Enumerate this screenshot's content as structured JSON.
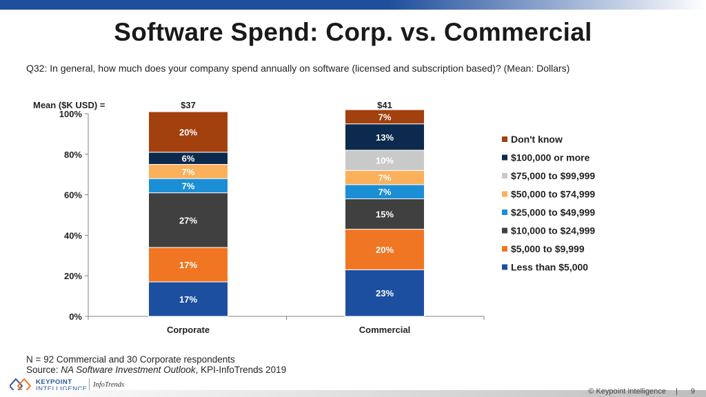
{
  "slide": {
    "title": "Software Spend: Corp. vs. Commercial",
    "question": "Q32:  In general, how much does your company spend annually on software (licensed and subscription based)? (Mean: Dollars)",
    "note_line1": "N = 92 Commercial and 30 Corporate respondents",
    "source_prefix": "Source: ",
    "source_italic": "NA Software Investment Outlook",
    "source_suffix": ", KPI-InfoTrends 2019",
    "logo_line1": "KEYPOINT",
    "logo_line2": "INTELLIGENCE",
    "logo_brand2": "InfoTrends",
    "copyright": "© Keypoint Intelligence",
    "page_separator": "|",
    "page_number": "9",
    "band_color": "#1f4e9c"
  },
  "chart_data": {
    "type": "bar",
    "stacked": true,
    "ylim": [
      0,
      100
    ],
    "y_ticks": [
      "0%",
      "20%",
      "40%",
      "60%",
      "80%",
      "100%"
    ],
    "categories": [
      "Corporate",
      "Commercial"
    ],
    "mean_label": "Mean ($K USD) =",
    "means": [
      "$37",
      "$41"
    ],
    "legend_position": "right",
    "series": [
      {
        "name": "Less than $5,000",
        "color": "#1d4fa0",
        "values": [
          17,
          23
        ],
        "labels": [
          "17%",
          "23%"
        ]
      },
      {
        "name": "$5,000 to $9,999",
        "color": "#f07623",
        "values": [
          17,
          20
        ],
        "labels": [
          "17%",
          "20%"
        ]
      },
      {
        "name": "$10,000 to $24,999",
        "color": "#404040",
        "values": [
          27,
          15
        ],
        "labels": [
          "27%",
          "15%"
        ]
      },
      {
        "name": "$25,000 to $49,999",
        "color": "#1b8fd6",
        "values": [
          7,
          7
        ],
        "labels": [
          "7%",
          "7%"
        ]
      },
      {
        "name": "$50,000 to $74,999",
        "color": "#fbb05b",
        "values": [
          7,
          7
        ],
        "labels": [
          "7%",
          "7%"
        ]
      },
      {
        "name": "$75,000 to $99,999",
        "color": "#c9c9c9",
        "values": [
          0,
          10
        ],
        "labels": [
          "",
          "10%"
        ]
      },
      {
        "name": "$100,000 or more",
        "color": "#0c2a4d",
        "values": [
          6,
          13
        ],
        "labels": [
          "6%",
          "13%"
        ]
      },
      {
        "name": "Don't know",
        "color": "#a2400e",
        "values": [
          20,
          7
        ],
        "labels": [
          "20%",
          "7%"
        ]
      }
    ]
  }
}
